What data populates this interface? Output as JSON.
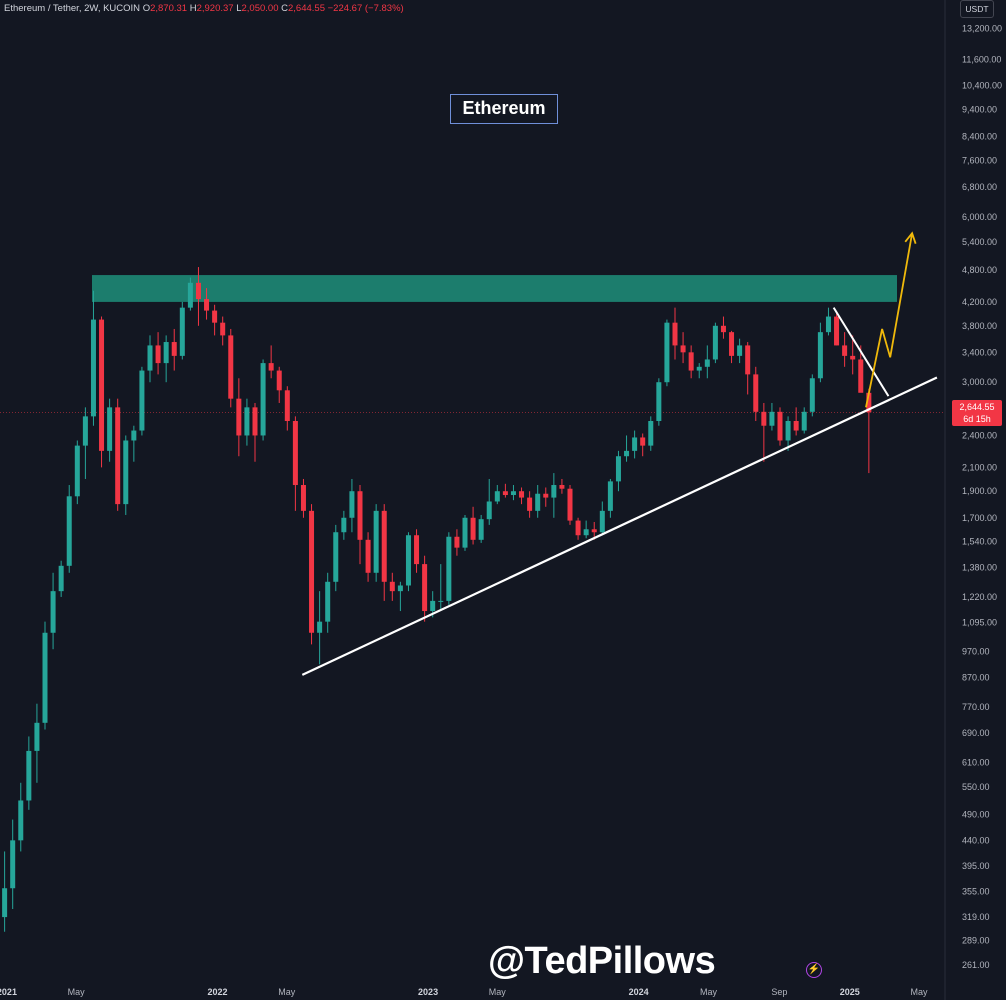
{
  "header": {
    "symbol": "Ethereum / Tether, 2W, KUCOIN",
    "open_label": "O",
    "open": "2,870.31",
    "high_label": "H",
    "high": "2,920.37",
    "low_label": "L",
    "low": "2,050.00",
    "close_label": "C",
    "close": "2,644.55",
    "change": "−224.67 (−7.83%)"
  },
  "currency": "USDT",
  "title": "Ethereum",
  "watermark": "@TedPillows",
  "last_price": {
    "value": "2,644.55",
    "countdown": "6d 15h"
  },
  "chart_data": {
    "type": "candlestick",
    "title": "Ethereum",
    "y_scale": "log",
    "ylim": [
      240,
      13800
    ],
    "y_ticks": [
      "13,200.00",
      "11,600.00",
      "10,400.00",
      "9,400.00",
      "8,400.00",
      "7,600.00",
      "6,800.00",
      "6,000.00",
      "5,400.00",
      "4,800.00",
      "4,200.00",
      "3,800.00",
      "3,400.00",
      "3,000.00",
      "2,700.00",
      "2,400.00",
      "2,100.00",
      "1,900.00",
      "1,700.00",
      "1,540.00",
      "1,380.00",
      "1,220.00",
      "1,095.00",
      "970.00",
      "870.00",
      "770.00",
      "690.00",
      "610.00",
      "550.00",
      "490.00",
      "440.00",
      "395.00",
      "355.00",
      "319.00",
      "289.00",
      "261.00"
    ],
    "x_ticks": [
      "2021",
      "May",
      "2022",
      "May",
      "2023",
      "May",
      "2024",
      "May",
      "Sep",
      "2025",
      "May"
    ],
    "x_tick_dates": [
      "2021-01-01",
      "2021-05-01",
      "2022-01-01",
      "2022-05-01",
      "2023-01-01",
      "2023-05-01",
      "2024-01-01",
      "2024-05-01",
      "2024-09-01",
      "2025-01-01",
      "2025-05-01"
    ],
    "xlim": [
      "2020-12-20",
      "2025-06-15"
    ],
    "candles": [
      [
        "2020-12-21",
        319,
        420,
        300,
        360
      ],
      [
        "2021-01-04",
        360,
        480,
        330,
        440
      ],
      [
        "2021-01-18",
        440,
        560,
        420,
        520
      ],
      [
        "2021-02-01",
        520,
        680,
        500,
        640
      ],
      [
        "2021-02-15",
        640,
        780,
        560,
        720
      ],
      [
        "2021-03-01",
        720,
        1100,
        700,
        1050
      ],
      [
        "2021-03-15",
        1050,
        1350,
        980,
        1250
      ],
      [
        "2021-03-29",
        1250,
        1420,
        1220,
        1390
      ],
      [
        "2021-04-12",
        1390,
        1950,
        1350,
        1860
      ],
      [
        "2021-04-26",
        1860,
        2350,
        1800,
        2300
      ],
      [
        "2021-05-10",
        2300,
        2700,
        2000,
        2600
      ],
      [
        "2021-05-24",
        2600,
        4400,
        2500,
        3900
      ],
      [
        "2021-06-07",
        3900,
        3950,
        2100,
        2250
      ],
      [
        "2021-06-21",
        2250,
        2800,
        2150,
        2700
      ],
      [
        "2021-07-05",
        2700,
        2800,
        1750,
        1800
      ],
      [
        "2021-07-19",
        1800,
        2400,
        1720,
        2350
      ],
      [
        "2021-08-02",
        2350,
        2500,
        2150,
        2450
      ],
      [
        "2021-08-16",
        2450,
        3200,
        2400,
        3150
      ],
      [
        "2021-08-30",
        3150,
        3650,
        3000,
        3500
      ],
      [
        "2021-09-13",
        3500,
        3700,
        3100,
        3250
      ],
      [
        "2021-09-27",
        3250,
        3650,
        3000,
        3550
      ],
      [
        "2021-10-11",
        3550,
        3750,
        3150,
        3350
      ],
      [
        "2021-10-25",
        3350,
        4200,
        3300,
        4100
      ],
      [
        "2021-11-08",
        4100,
        4650,
        4050,
        4550
      ],
      [
        "2021-11-22",
        4550,
        4860,
        3800,
        4250
      ],
      [
        "2021-12-06",
        4250,
        4450,
        3900,
        4050
      ],
      [
        "2021-12-20",
        4050,
        4150,
        3650,
        3850
      ],
      [
        "2022-01-03",
        3850,
        3950,
        3500,
        3650
      ],
      [
        "2022-01-17",
        3650,
        3750,
        2700,
        2800
      ],
      [
        "2022-01-31",
        2800,
        3050,
        2200,
        2400
      ],
      [
        "2022-02-14",
        2400,
        2800,
        2300,
        2700
      ],
      [
        "2022-02-28",
        2700,
        2750,
        2150,
        2400
      ],
      [
        "2022-03-14",
        2400,
        3300,
        2350,
        3250
      ],
      [
        "2022-03-28",
        3250,
        3500,
        3050,
        3150
      ],
      [
        "2022-04-11",
        3150,
        3200,
        2750,
        2900
      ],
      [
        "2022-04-25",
        2900,
        2950,
        2450,
        2550
      ],
      [
        "2022-05-09",
        2550,
        2600,
        1750,
        1950
      ],
      [
        "2022-05-23",
        1950,
        2000,
        1700,
        1750
      ],
      [
        "2022-06-06",
        1750,
        1800,
        1000,
        1050
      ],
      [
        "2022-06-20",
        1050,
        1250,
        920,
        1100
      ],
      [
        "2022-07-04",
        1100,
        1350,
        1050,
        1300
      ],
      [
        "2022-07-18",
        1300,
        1650,
        1250,
        1600
      ],
      [
        "2022-08-01",
        1600,
        1750,
        1550,
        1700
      ],
      [
        "2022-08-15",
        1700,
        2000,
        1600,
        1900
      ],
      [
        "2022-08-29",
        1900,
        1950,
        1400,
        1550
      ],
      [
        "2022-09-12",
        1550,
        1600,
        1300,
        1350
      ],
      [
        "2022-09-26",
        1350,
        1800,
        1300,
        1750
      ],
      [
        "2022-10-10",
        1750,
        1800,
        1200,
        1300
      ],
      [
        "2022-10-24",
        1300,
        1350,
        1200,
        1250
      ],
      [
        "2022-11-07",
        1250,
        1300,
        1150,
        1280
      ],
      [
        "2022-11-21",
        1280,
        1600,
        1250,
        1580
      ],
      [
        "2022-12-05",
        1580,
        1620,
        1350,
        1400
      ],
      [
        "2022-12-19",
        1400,
        1450,
        1100,
        1150
      ],
      [
        "2023-01-02",
        1150,
        1250,
        1120,
        1200
      ],
      [
        "2023-01-16",
        1200,
        1400,
        1150,
        1200
      ],
      [
        "2023-01-30",
        1200,
        1600,
        1180,
        1570
      ],
      [
        "2023-02-13",
        1570,
        1620,
        1450,
        1500
      ],
      [
        "2023-02-27",
        1500,
        1720,
        1480,
        1700
      ],
      [
        "2023-03-13",
        1700,
        1780,
        1520,
        1550
      ],
      [
        "2023-03-27",
        1550,
        1720,
        1530,
        1690
      ],
      [
        "2023-04-10",
        1690,
        2000,
        1650,
        1820
      ],
      [
        "2023-04-24",
        1820,
        1950,
        1800,
        1900
      ],
      [
        "2023-05-08",
        1900,
        1960,
        1850,
        1870
      ],
      [
        "2023-05-22",
        1870,
        1950,
        1830,
        1900
      ],
      [
        "2023-06-05",
        1900,
        1930,
        1800,
        1850
      ],
      [
        "2023-06-19",
        1850,
        1900,
        1700,
        1750
      ],
      [
        "2023-07-03",
        1750,
        1950,
        1700,
        1880
      ],
      [
        "2023-07-17",
        1880,
        1930,
        1780,
        1850
      ],
      [
        "2023-07-31",
        1850,
        2050,
        1700,
        1950
      ],
      [
        "2023-08-14",
        1950,
        2000,
        1880,
        1920
      ],
      [
        "2023-08-28",
        1920,
        1950,
        1650,
        1680
      ],
      [
        "2023-09-11",
        1680,
        1700,
        1550,
        1580
      ],
      [
        "2023-09-25",
        1580,
        1680,
        1560,
        1620
      ],
      [
        "2023-10-09",
        1620,
        1670,
        1550,
        1600
      ],
      [
        "2023-10-23",
        1600,
        1820,
        1580,
        1750
      ],
      [
        "2023-11-06",
        1750,
        2000,
        1700,
        1980
      ],
      [
        "2023-11-20",
        1980,
        2250,
        1900,
        2200
      ],
      [
        "2023-12-04",
        2200,
        2400,
        2150,
        2250
      ],
      [
        "2023-12-18",
        2250,
        2450,
        2180,
        2380
      ],
      [
        "2024-01-01",
        2380,
        2420,
        2200,
        2300
      ],
      [
        "2024-01-15",
        2300,
        2600,
        2250,
        2550
      ],
      [
        "2024-01-29",
        2550,
        3050,
        2500,
        3000
      ],
      [
        "2024-02-12",
        3000,
        3900,
        2950,
        3850
      ],
      [
        "2024-02-26",
        3850,
        4100,
        3300,
        3500
      ],
      [
        "2024-03-11",
        3500,
        3700,
        3250,
        3400
      ],
      [
        "2024-03-25",
        3400,
        3500,
        3050,
        3150
      ],
      [
        "2024-04-08",
        3150,
        3250,
        3050,
        3200
      ],
      [
        "2024-04-22",
        3200,
        3500,
        3050,
        3300
      ],
      [
        "2024-05-06",
        3300,
        3850,
        3250,
        3800
      ],
      [
        "2024-05-20",
        3800,
        3950,
        3600,
        3700
      ],
      [
        "2024-06-03",
        3700,
        3720,
        3250,
        3350
      ],
      [
        "2024-06-17",
        3350,
        3600,
        3250,
        3500
      ],
      [
        "2024-07-01",
        3500,
        3550,
        2850,
        3100
      ],
      [
        "2024-07-15",
        3100,
        3200,
        2550,
        2650
      ],
      [
        "2024-07-29",
        2650,
        2750,
        2150,
        2500
      ],
      [
        "2024-08-12",
        2500,
        2750,
        2450,
        2650
      ],
      [
        "2024-08-26",
        2650,
        2700,
        2300,
        2350
      ],
      [
        "2024-09-09",
        2350,
        2600,
        2250,
        2550
      ],
      [
        "2024-09-23",
        2550,
        2700,
        2400,
        2450
      ],
      [
        "2024-10-07",
        2450,
        2700,
        2420,
        2650
      ],
      [
        "2024-10-21",
        2650,
        3100,
        2600,
        3050
      ],
      [
        "2024-11-04",
        3050,
        3850,
        3000,
        3700
      ],
      [
        "2024-11-18",
        3700,
        4100,
        3650,
        3950
      ],
      [
        "2024-12-02",
        3950,
        4000,
        3500,
        3500
      ],
      [
        "2024-12-16",
        3500,
        3700,
        3200,
        3350
      ],
      [
        "2024-12-30",
        3350,
        3650,
        3100,
        3300
      ],
      [
        "2025-01-13",
        3300,
        3500,
        2900,
        2870
      ],
      [
        "2025-01-27",
        2870,
        2920,
        2050,
        2644.55
      ]
    ],
    "annotations": {
      "resistance_zone": [
        4200,
        4700
      ],
      "support_trendline": [
        [
          "2022-05-28",
          880
        ],
        [
          "2025-06-01",
          3060
        ]
      ],
      "descending_line": [
        [
          "2024-12-04",
          4100
        ],
        [
          "2025-03-09",
          2830
        ]
      ],
      "projection_path": [
        [
          "2025-01-29",
          2700
        ],
        [
          "2025-02-26",
          3750
        ],
        [
          "2025-03-12",
          3330
        ],
        [
          "2025-04-19",
          5600
        ]
      ]
    }
  },
  "colors": {
    "background": "#131722",
    "up": "#26a69a",
    "down": "#f23645",
    "zone": "#1f8f7a",
    "trendline": "#ffffff",
    "projection": "#f0b90b",
    "axis_text": "#b2b5be"
  }
}
